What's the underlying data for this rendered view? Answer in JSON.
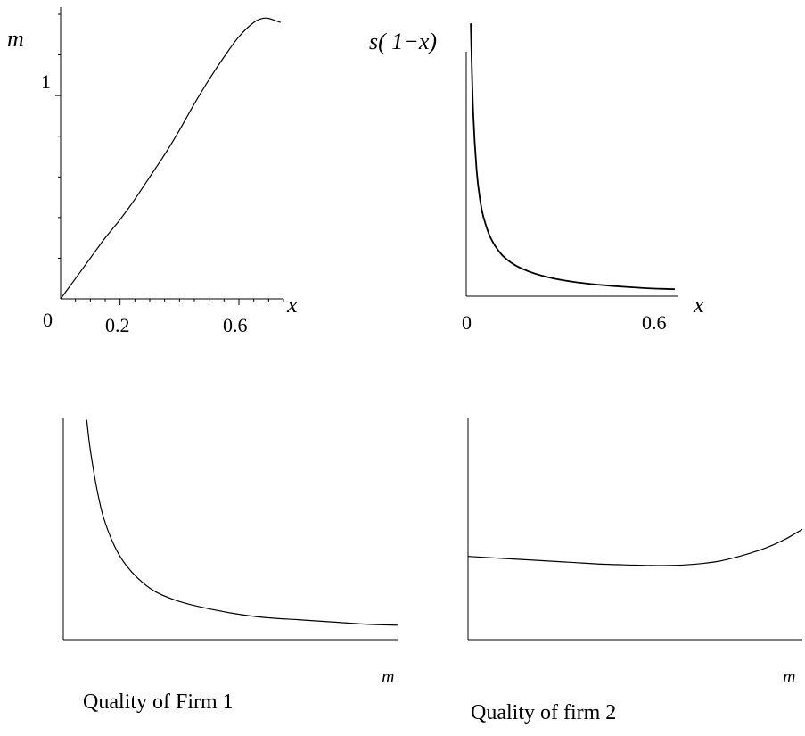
{
  "chart_data": [
    {
      "id": "tl",
      "type": "line",
      "ylabel": "m",
      "xlabel": "x",
      "origin_label": "0",
      "x_tick_labels": [
        {
          "value": 0.2,
          "label": "0.2"
        },
        {
          "value": 0.6,
          "label": "0.6"
        }
      ],
      "y_tick_labels": [
        {
          "value": 1,
          "label": "1"
        }
      ],
      "xlim": [
        0,
        0.75
      ],
      "ylim": [
        0,
        1.4
      ],
      "x_minor_step": 0.05,
      "y_minor_step": 0.2,
      "series": [
        {
          "x": [
            0,
            0.05,
            0.1,
            0.15,
            0.2,
            0.25,
            0.3,
            0.35,
            0.4,
            0.45,
            0.5,
            0.55,
            0.6,
            0.65,
            0.68,
            0.7,
            0.72,
            0.74
          ],
          "y": [
            0,
            0.1,
            0.2,
            0.3,
            0.39,
            0.49,
            0.6,
            0.71,
            0.83,
            0.96,
            1.08,
            1.19,
            1.29,
            1.36,
            1.38,
            1.38,
            1.37,
            1.36
          ]
        }
      ]
    },
    {
      "id": "tr",
      "type": "line",
      "ylabel": "s( 1−x)",
      "xlabel": "x",
      "x_tick_labels": [
        {
          "value": 0,
          "label": "0"
        },
        {
          "value": 0.6,
          "label": "0.6"
        }
      ],
      "xlim": [
        0,
        0.6
      ],
      "ylim": [
        0,
        10
      ],
      "series": [
        {
          "x": [
            0.013,
            0.02,
            0.03,
            0.04,
            0.05,
            0.07,
            0.1,
            0.13,
            0.16,
            0.2,
            0.25,
            0.3,
            0.35,
            0.4,
            0.45,
            0.5,
            0.55,
            0.6
          ],
          "y": [
            9.8,
            6.6,
            4.5,
            3.45,
            2.82,
            2.1,
            1.52,
            1.2,
            0.99,
            0.8,
            0.64,
            0.53,
            0.45,
            0.39,
            0.34,
            0.3,
            0.27,
            0.25
          ]
        }
      ]
    },
    {
      "id": "bl",
      "type": "line",
      "xlabel": "m",
      "caption": "Quality of Firm 1",
      "xlim": [
        0,
        1
      ],
      "ylim": [
        0,
        1
      ],
      "series": [
        {
          "x": [
            0.07,
            0.08,
            0.1,
            0.12,
            0.15,
            0.18,
            0.22,
            0.27,
            0.33,
            0.4,
            0.5,
            0.6,
            0.7,
            0.8,
            0.9,
            1.0
          ],
          "y": [
            0.99,
            0.86,
            0.68,
            0.55,
            0.43,
            0.35,
            0.28,
            0.22,
            0.18,
            0.15,
            0.12,
            0.1,
            0.09,
            0.08,
            0.07,
            0.065
          ]
        }
      ]
    },
    {
      "id": "br",
      "type": "line",
      "xlabel": "m",
      "caption": "Quality of firm 2",
      "xlim": [
        0,
        1
      ],
      "ylim": [
        0,
        1
      ],
      "series": [
        {
          "x": [
            0,
            0.1,
            0.2,
            0.3,
            0.4,
            0.5,
            0.55,
            0.6,
            0.65,
            0.7,
            0.75,
            0.8,
            0.85,
            0.9,
            0.95,
            1.0
          ],
          "y": [
            0.43,
            0.42,
            0.41,
            0.4,
            0.39,
            0.385,
            0.383,
            0.383,
            0.386,
            0.393,
            0.405,
            0.425,
            0.45,
            0.48,
            0.52,
            0.57
          ]
        }
      ]
    }
  ]
}
